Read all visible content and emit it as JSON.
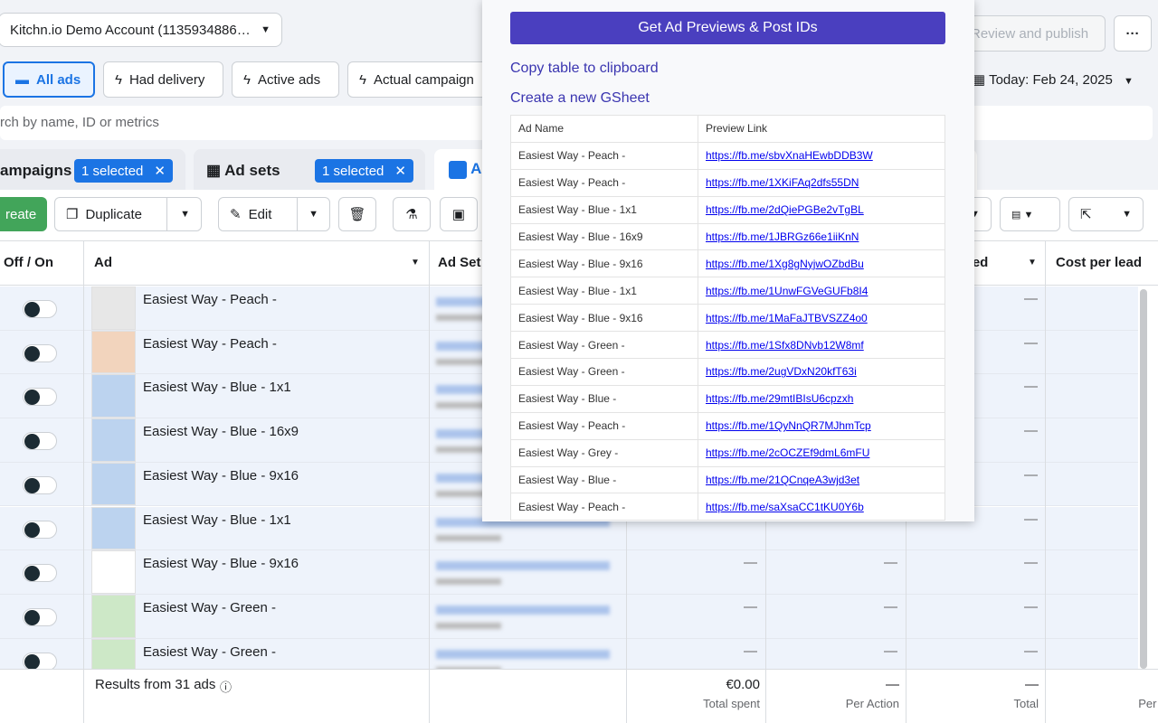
{
  "account": {
    "name": "Kitchn.io Demo Account (1135934886…"
  },
  "top_actions": {
    "review": "Review and publish"
  },
  "filters": [
    "All ads",
    "Had delivery",
    "Active ads",
    "Actual campaign"
  ],
  "date": "Today: Feb 24, 2025",
  "search": "rch by name, ID or metrics",
  "tabs": [
    {
      "label": "ampaigns",
      "selection": "1 selected"
    },
    {
      "label": "Ad sets",
      "selection": "1 selected"
    },
    {
      "label": "A"
    }
  ],
  "toolbar": {
    "create": "reate",
    "duplicate": "Duplicate",
    "edit": "Edit"
  },
  "columns": [
    "Off / On",
    "Ad",
    "Ad Set",
    "rted",
    "Cost per lead"
  ],
  "rows": [
    {
      "name": "Easiest Way - Peach -",
      "metrics": [
        "—"
      ]
    },
    {
      "name": "Easiest Way - Peach -",
      "metrics": [
        "—"
      ]
    },
    {
      "name": "Easiest Way - Blue - 1x1",
      "metrics": [
        "—"
      ]
    },
    {
      "name": "Easiest Way - Blue - 16x9",
      "metrics": [
        "—"
      ]
    },
    {
      "name": "Easiest Way - Blue - 9x16",
      "metrics": [
        "—"
      ]
    },
    {
      "name": "Easiest Way - Blue - 1x1",
      "metrics": [
        "—"
      ]
    },
    {
      "name": "Easiest Way - Blue - 9x16",
      "metrics": [
        "—",
        "—",
        "—"
      ]
    },
    {
      "name": "Easiest Way - Green -",
      "metrics": [
        "—",
        "—",
        "—"
      ]
    },
    {
      "name": "Easiest Way - Green -",
      "metrics": [
        "—",
        "—",
        "—"
      ]
    }
  ],
  "footer": {
    "results": "Results from 31 ads",
    "spent": "€0.00",
    "spent_label": "Total spent",
    "per_action": "—",
    "per_action_label": "Per Action",
    "total": "—",
    "total_label": "Total",
    "last_label": "Per A"
  },
  "popup": {
    "button": "Get Ad Previews & Post IDs",
    "copy": "Copy table to clipboard",
    "gsheet": "Create a new GSheet",
    "table": {
      "headers": [
        "Ad Name",
        "Preview Link"
      ],
      "rows": [
        [
          "Easiest Way - Peach -",
          "https://fb.me/sbvXnaHEwbDDB3W"
        ],
        [
          "Easiest Way - Peach -",
          "https://fb.me/1XKiFAq2dfs55DN"
        ],
        [
          "Easiest Way - Blue - 1x1",
          "https://fb.me/2dQiePGBe2vTgBL"
        ],
        [
          "Easiest Way - Blue - 16x9",
          "https://fb.me/1JBRGz66e1iiKnN"
        ],
        [
          "Easiest Way - Blue - 9x16",
          "https://fb.me/1Xg8gNyjwOZbdBu"
        ],
        [
          "Easiest Way - Blue - 1x1",
          "https://fb.me/1UnwFGVeGUFb8I4"
        ],
        [
          "Easiest Way - Blue - 9x16",
          "https://fb.me/1MaFaJTBVSZZ4o0"
        ],
        [
          "Easiest Way - Green -",
          "https://fb.me/1Sfx8DNvb12W8mf"
        ],
        [
          "Easiest Way - Green -",
          "https://fb.me/2ugVDxN20kfT63i"
        ],
        [
          "Easiest Way - Blue -",
          "https://fb.me/29mtIBIsU6cpzxh"
        ],
        [
          "Easiest Way - Peach -",
          "https://fb.me/1QyNnQR7MJhmTcp"
        ],
        [
          "Easiest Way - Grey -",
          "https://fb.me/2cOCZEf9dmL6mFU"
        ],
        [
          "Easiest Way - Blue -",
          "https://fb.me/21QCnqeA3wjd3et"
        ],
        [
          "Easiest Way - Peach -",
          "https://fb.me/saXsaCC1tKU0Y6b"
        ]
      ]
    }
  }
}
